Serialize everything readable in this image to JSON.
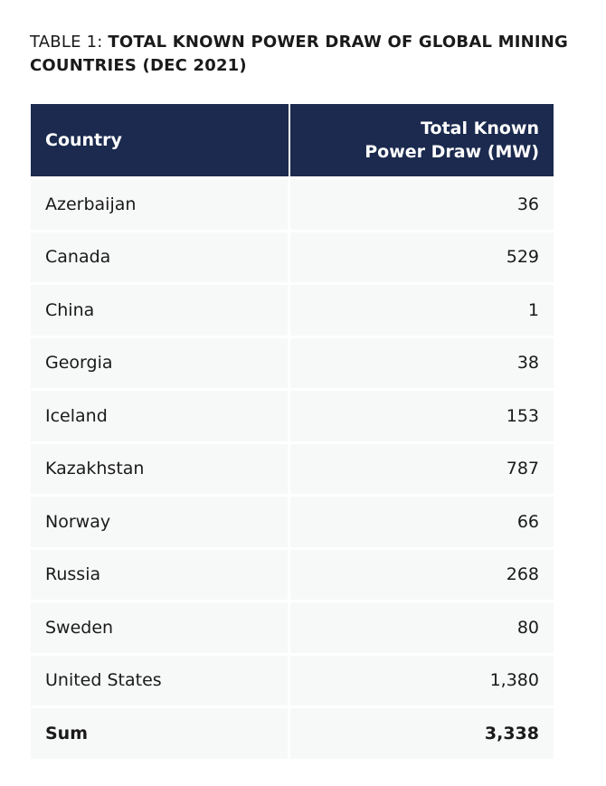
{
  "caption": {
    "lead": "TABLE 1: ",
    "title": "TOTAL KNOWN POWER DRAW OF GLOBAL MINING COUNTRIES (DEC 2021)"
  },
  "table": {
    "headers": {
      "country": "Country",
      "power_line1": "Total Known",
      "power_line2": "Power Draw (MW)"
    },
    "rows": [
      {
        "country": "Azerbaijan",
        "value": "36"
      },
      {
        "country": "Canada",
        "value": "529"
      },
      {
        "country": "China",
        "value": "1"
      },
      {
        "country": "Georgia",
        "value": "38"
      },
      {
        "country": "Iceland",
        "value": "153"
      },
      {
        "country": "Kazakhstan",
        "value": "787"
      },
      {
        "country": "Norway",
        "value": "66"
      },
      {
        "country": "Russia",
        "value": "268"
      },
      {
        "country": "Sweden",
        "value": "80"
      },
      {
        "country": "United States",
        "value": "1,380"
      }
    ],
    "sum": {
      "label": "Sum",
      "value": "3,338"
    }
  },
  "colors": {
    "header_bg": "#1b2a4e",
    "row_bg": "#f7f8f8"
  }
}
